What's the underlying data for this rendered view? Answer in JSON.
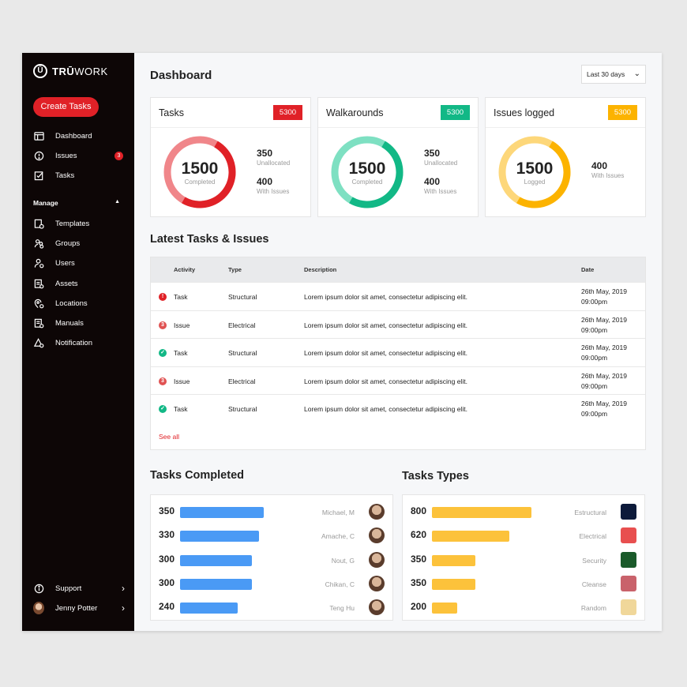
{
  "app": {
    "brand_mark": "Ū",
    "brand_bold": "TRŪ",
    "brand_light": "WORK"
  },
  "sidebar": {
    "create_label": "Create Tasks",
    "items": [
      {
        "label": "Dashboard",
        "icon": "dashboard-icon"
      },
      {
        "label": "Issues",
        "icon": "issues-icon",
        "badge": "3"
      },
      {
        "label": "Tasks",
        "icon": "tasks-icon"
      }
    ],
    "manage_label": "Manage",
    "manage_items": [
      {
        "label": "Templates",
        "icon": "templates-icon"
      },
      {
        "label": "Groups",
        "icon": "groups-icon"
      },
      {
        "label": "Users",
        "icon": "users-icon"
      },
      {
        "label": "Assets",
        "icon": "assets-icon"
      },
      {
        "label": "Locations",
        "icon": "locations-icon"
      },
      {
        "label": "Manuals",
        "icon": "manuals-icon"
      },
      {
        "label": "Notification",
        "icon": "notification-icon"
      }
    ],
    "support_label": "Support",
    "user_name": "Jenny Potter"
  },
  "header": {
    "title": "Dashboard",
    "range": "Last 30 days"
  },
  "stats": [
    {
      "title": "Tasks",
      "pill": "5300",
      "color": "#e02127",
      "light": "#f0868a",
      "value": "1500",
      "sub": "Completed",
      "fraction": 0.5,
      "n1": "350",
      "l1": "Unallocated",
      "n2": "400",
      "l2": "With Issues"
    },
    {
      "title": "Walkarounds",
      "pill": "5300",
      "color": "#12b886",
      "light": "#7ee0c2",
      "value": "1500",
      "sub": "Completed",
      "fraction": 0.5,
      "n1": "350",
      "l1": "Unallocated",
      "n2": "400",
      "l2": "With Issues"
    },
    {
      "title": "Issues logged",
      "pill": "5300",
      "color": "#fcb300",
      "light": "#fdd77a",
      "value": "1500",
      "sub": "Logged",
      "fraction": 0.5,
      "n1": "400",
      "l1": "With Issues"
    }
  ],
  "latest": {
    "title": "Latest Tasks & Issues",
    "columns": [
      "Activity",
      "Type",
      "Description",
      "Date"
    ],
    "rows": [
      {
        "status": "error",
        "activity": "Task",
        "type": "Structural",
        "desc": "Lorem ipsum dolor sit amet, consectetur adipiscing elit.",
        "date": "26th May, 2019",
        "time": "09:00pm"
      },
      {
        "status": "issue",
        "activity": "Issue",
        "type": "Electrical",
        "desc": "Lorem ipsum dolor sit amet, consectetur adipiscing elit.",
        "date": "26th May, 2019",
        "time": "09:00pm"
      },
      {
        "status": "done",
        "activity": "Task",
        "type": "Structural",
        "desc": "Lorem ipsum dolor sit amet, consectetur adipiscing elit.",
        "date": "26th May, 2019",
        "time": "09:00pm"
      },
      {
        "status": "issue",
        "activity": "Issue",
        "type": "Electrical",
        "desc": "Lorem ipsum dolor sit amet, consectetur adipiscing elit.",
        "date": "26th May, 2019",
        "time": "09:00pm"
      },
      {
        "status": "done",
        "activity": "Task",
        "type": "Structural",
        "desc": "Lorem ipsum dolor sit amet, consectetur adipiscing elit.",
        "date": "26th May, 2019",
        "time": "09:00pm"
      }
    ],
    "see_all": "See all"
  },
  "tasks_completed": {
    "title": "Tasks Completed",
    "color": "#4a9af5",
    "rows": [
      {
        "value": 350,
        "name": "Michael, M"
      },
      {
        "value": 330,
        "name": "Amache, C"
      },
      {
        "value": 300,
        "name": "Nout, G"
      },
      {
        "value": 300,
        "name": "Chikan, C"
      },
      {
        "value": 240,
        "name": "Teng Hu"
      }
    ]
  },
  "task_types": {
    "title": "Tasks Types",
    "color": "#fcc23b",
    "rows": [
      {
        "value": 800,
        "name": "Estructural",
        "swatch": "#0d1a3a"
      },
      {
        "value": 620,
        "name": "Electrical",
        "swatch": "#e84f4f"
      },
      {
        "value": 350,
        "name": "Security",
        "swatch": "#1a5a2a"
      },
      {
        "value": 350,
        "name": "Cleanse",
        "swatch": "#c9626b"
      },
      {
        "value": 200,
        "name": "Random",
        "swatch": "#f0d79a"
      }
    ]
  }
}
